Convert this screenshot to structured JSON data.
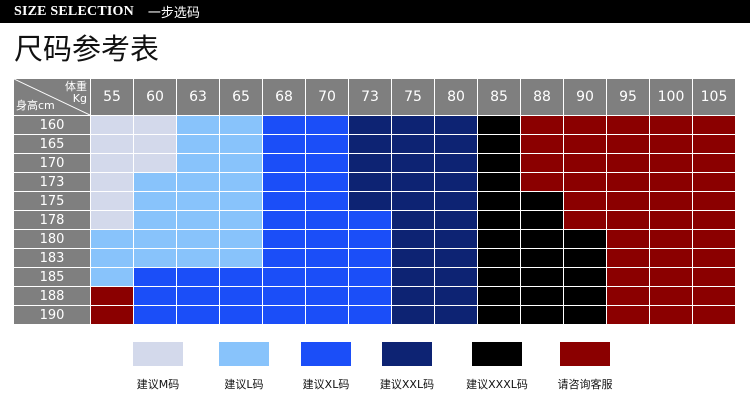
{
  "header": {
    "en": "SIZE SELECTION",
    "cn": "一步选码"
  },
  "title": "尺码参考表",
  "table": {
    "corner_weight": "体重",
    "corner_kg": "Kg",
    "corner_height": "身高cm",
    "weights": [
      "55",
      "60",
      "63",
      "65",
      "68",
      "70",
      "73",
      "75",
      "80",
      "85",
      "88",
      "90",
      "95",
      "100",
      "105"
    ],
    "rows": [
      {
        "height": "160",
        "cells": [
          "M",
          "M",
          "L",
          "L",
          "XL",
          "XL",
          "XXL",
          "XXL",
          "XXL",
          "XXXL",
          "ASK",
          "ASK",
          "ASK",
          "ASK",
          "ASK"
        ]
      },
      {
        "height": "165",
        "cells": [
          "M",
          "M",
          "L",
          "L",
          "XL",
          "XL",
          "XXL",
          "XXL",
          "XXL",
          "XXXL",
          "ASK",
          "ASK",
          "ASK",
          "ASK",
          "ASK"
        ]
      },
      {
        "height": "170",
        "cells": [
          "M",
          "M",
          "L",
          "L",
          "XL",
          "XL",
          "XXL",
          "XXL",
          "XXL",
          "XXXL",
          "ASK",
          "ASK",
          "ASK",
          "ASK",
          "ASK"
        ]
      },
      {
        "height": "173",
        "cells": [
          "M",
          "L",
          "L",
          "L",
          "XL",
          "XL",
          "XXL",
          "XXL",
          "XXL",
          "XXXL",
          "ASK",
          "ASK",
          "ASK",
          "ASK",
          "ASK"
        ]
      },
      {
        "height": "175",
        "cells": [
          "M",
          "L",
          "L",
          "L",
          "XL",
          "XL",
          "XXL",
          "XXL",
          "XXL",
          "XXXL",
          "XXXL",
          "ASK",
          "ASK",
          "ASK",
          "ASK"
        ]
      },
      {
        "height": "178",
        "cells": [
          "M",
          "L",
          "L",
          "L",
          "XL",
          "XL",
          "XL",
          "XXL",
          "XXL",
          "XXXL",
          "XXXL",
          "ASK",
          "ASK",
          "ASK",
          "ASK"
        ]
      },
      {
        "height": "180",
        "cells": [
          "L",
          "L",
          "L",
          "L",
          "XL",
          "XL",
          "XL",
          "XXL",
          "XXL",
          "XXXL",
          "XXXL",
          "XXXL",
          "ASK",
          "ASK",
          "ASK"
        ]
      },
      {
        "height": "183",
        "cells": [
          "L",
          "L",
          "L",
          "L",
          "XL",
          "XL",
          "XL",
          "XXL",
          "XXL",
          "XXXL",
          "XXXL",
          "XXXL",
          "ASK",
          "ASK",
          "ASK"
        ]
      },
      {
        "height": "185",
        "cells": [
          "L",
          "XL",
          "XL",
          "XL",
          "XL",
          "XL",
          "XL",
          "XXL",
          "XXL",
          "XXXL",
          "XXXL",
          "XXXL",
          "ASK",
          "ASK",
          "ASK"
        ]
      },
      {
        "height": "188",
        "cells": [
          "ASK",
          "XL",
          "XL",
          "XL",
          "XL",
          "XL",
          "XL",
          "XXL",
          "XXL",
          "XXXL",
          "XXXL",
          "XXXL",
          "ASK",
          "ASK",
          "ASK"
        ]
      },
      {
        "height": "190",
        "cells": [
          "ASK",
          "XL",
          "XL",
          "XL",
          "XL",
          "XL",
          "XL",
          "XXL",
          "XXL",
          "XXXL",
          "XXXL",
          "XXXL",
          "ASK",
          "ASK",
          "ASK"
        ]
      }
    ]
  },
  "sizes": {
    "M": {
      "color": "#d3d9eb",
      "label": "建议M码"
    },
    "L": {
      "color": "#88c3fb",
      "label": "建议L码"
    },
    "XL": {
      "color": "#1b4ef8",
      "label": "建议XL码"
    },
    "XXL": {
      "color": "#0d2373",
      "label": "建议XXL码"
    },
    "XXXL": {
      "color": "#000000",
      "label": "建议XXXL码"
    },
    "ASK": {
      "color": "#8b0000",
      "label": "请咨询客服"
    }
  },
  "legend_order": [
    "M",
    "L",
    "XL",
    "XXL",
    "XXXL",
    "ASK"
  ]
}
